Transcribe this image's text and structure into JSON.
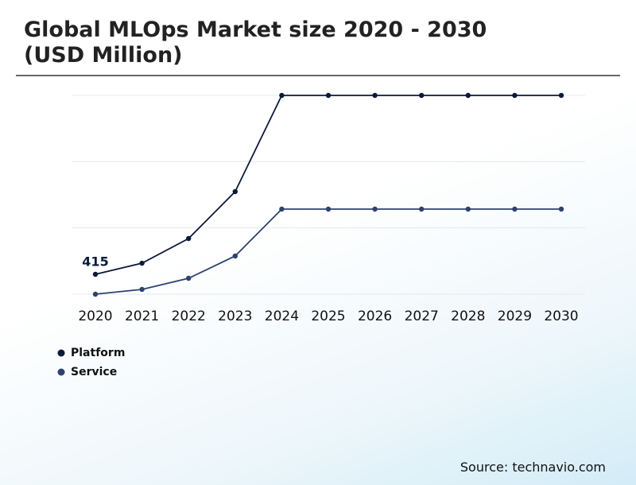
{
  "chart_data": {
    "type": "line",
    "title": "Global MLOps Market size 2020 - 2030 (USD Million)",
    "categories": [
      "2020",
      "2021",
      "2022",
      "2023",
      "2024",
      "2025",
      "2026",
      "2027",
      "2028",
      "2029",
      "2030"
    ],
    "series": [
      {
        "name": "Platform",
        "color": "#0b1a3a",
        "values": [
          415,
          647,
          1162,
          2141,
          4150,
          4150,
          4150,
          4150,
          4150,
          4150,
          4150
        ]
      },
      {
        "name": "Service",
        "color": "#2e4270",
        "values": [
          0,
          100,
          332,
          797,
          1776,
          1776,
          1776,
          1776,
          1776,
          1776,
          1776
        ]
      }
    ],
    "ylim": [
      0,
      4150
    ],
    "yticks": [
      0,
      1383,
      2767,
      4150
    ],
    "grid": true,
    "source": "Source: technavio.com"
  }
}
